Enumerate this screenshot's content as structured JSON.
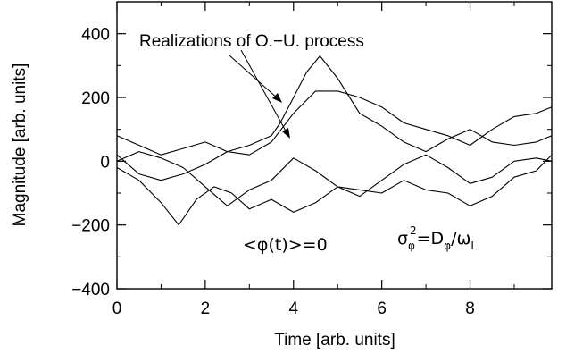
{
  "chart_data": {
    "type": "line",
    "title": "",
    "xlabel": "Time [arb. units]",
    "ylabel": "Magnitude [arb. units]",
    "xlim": [
      0,
      9.85
    ],
    "ylim": [
      -400,
      500
    ],
    "xticks": [
      0,
      2,
      4,
      6,
      8
    ],
    "yticks": [
      -400,
      -200,
      0,
      200,
      400
    ],
    "tick_labels_x": [
      "0",
      "2",
      "4",
      "6",
      "8"
    ],
    "tick_labels_y": [
      "−400",
      "−200",
      "0",
      "200",
      "400"
    ],
    "grid": false,
    "annotations": {
      "realizations": "Realizations of O.−U. process",
      "mean_phi": "<φ(t)>=0",
      "variance_sigma": "σ",
      "variance_sigma_sub": "φ",
      "variance_sigma_sup": "2",
      "variance_eq": "=D",
      "variance_d_sub": "φ",
      "variance_slash": "/ω",
      "variance_omega_sub": "L"
    },
    "series": [
      {
        "x": [
          0,
          0.5,
          1.0,
          1.5,
          2.0,
          2.5,
          3.0,
          3.5,
          3.7,
          4.0,
          4.3,
          4.6,
          5.0,
          5.5,
          6.0,
          6.5,
          7.0,
          7.5,
          8.0,
          8.5,
          9.0,
          9.5,
          9.85
        ],
        "values": [
          20,
          -40,
          -60,
          -40,
          -10,
          30,
          50,
          80,
          120,
          200,
          280,
          330,
          260,
          150,
          110,
          60,
          30,
          70,
          100,
          60,
          50,
          60,
          80
        ]
      },
      {
        "x": [
          0,
          0.5,
          1.0,
          1.5,
          2.0,
          2.5,
          3.0,
          3.5,
          4.0,
          4.5,
          5.0,
          5.5,
          6.0,
          6.5,
          7.0,
          7.5,
          8.0,
          8.5,
          9.0,
          9.5,
          9.85
        ],
        "values": [
          80,
          50,
          20,
          40,
          60,
          30,
          20,
          60,
          150,
          220,
          220,
          200,
          170,
          120,
          100,
          80,
          50,
          100,
          140,
          150,
          170
        ]
      },
      {
        "x": [
          0,
          0.5,
          1.0,
          1.4,
          1.8,
          2.2,
          2.6,
          3.0,
          3.5,
          4.0,
          4.5,
          5.0,
          5.5,
          6.0,
          6.5,
          7.0,
          7.5,
          8.0,
          8.5,
          9.0,
          9.5,
          9.85
        ],
        "values": [
          -20,
          -60,
          -130,
          -200,
          -120,
          -80,
          -100,
          -150,
          -120,
          -160,
          -130,
          -80,
          -90,
          -100,
          -60,
          -90,
          -100,
          -140,
          -110,
          -50,
          -30,
          20
        ]
      },
      {
        "x": [
          0,
          0.5,
          1.0,
          1.5,
          2.0,
          2.5,
          3.0,
          3.5,
          4.0,
          4.5,
          5.0,
          5.5,
          6.0,
          6.5,
          7.0,
          7.5,
          8.0,
          8.5,
          9.0,
          9.5,
          9.85
        ],
        "values": [
          0,
          30,
          10,
          -20,
          -80,
          -140,
          -90,
          -60,
          10,
          -30,
          -80,
          -110,
          -60,
          -10,
          20,
          -20,
          -70,
          -50,
          0,
          10,
          0
        ]
      }
    ]
  }
}
